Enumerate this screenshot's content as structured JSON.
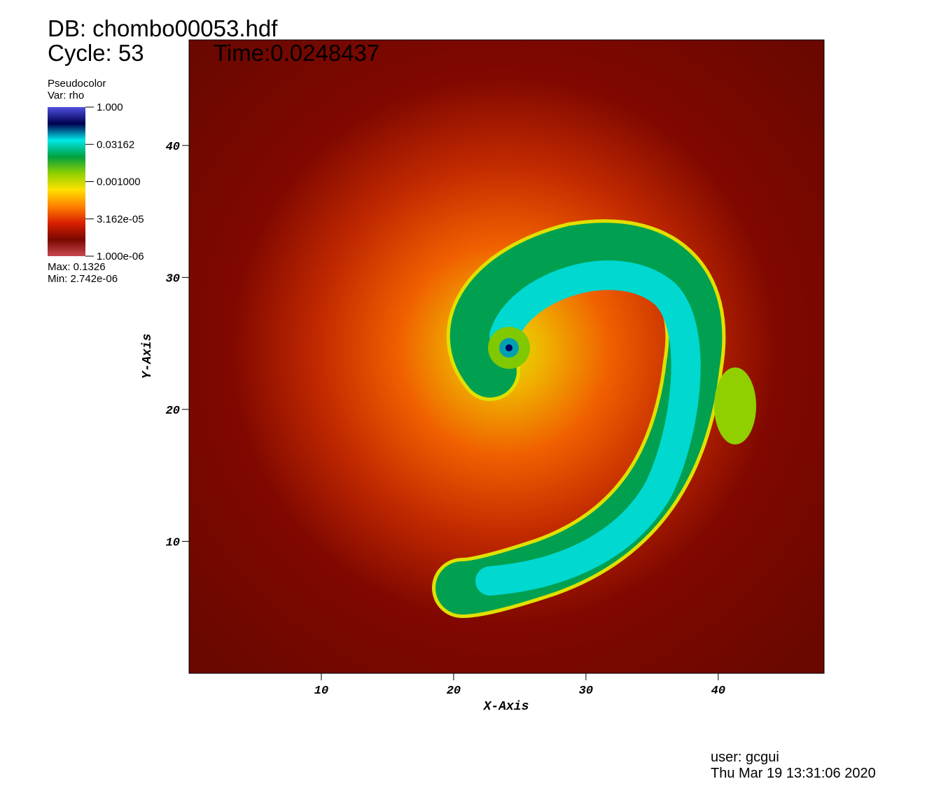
{
  "chart_data": {
    "type": "pseudocolor",
    "db": "DB: chombo00053.hdf",
    "cycle": "Cycle: 53",
    "time": "Time:0.0248437",
    "x_label": "X-Axis",
    "y_label": "Y-Axis",
    "xlim": [
      0,
      48
    ],
    "ylim": [
      0,
      48
    ],
    "xticks": [
      10,
      20,
      30,
      40
    ],
    "yticks": [
      10,
      20,
      30,
      40
    ],
    "legend": {
      "plot": "Pseudocolor",
      "var": "Var: rho",
      "log": true,
      "lim": [
        1e-06,
        1
      ],
      "ticks": [
        {
          "value": 1,
          "label": "1.000"
        },
        {
          "value": 0.03162,
          "label": "0.03162"
        },
        {
          "value": 0.001,
          "label": "0.001000"
        },
        {
          "value": 3.162e-05,
          "label": "3.162e-05"
        },
        {
          "value": 1e-06,
          "label": "1.000e-06"
        }
      ],
      "colors": [
        "#c84850",
        "#7a0800",
        "#d82000",
        "#ff8000",
        "#ffe000",
        "#90d000",
        "#00a040",
        "#00e8e8",
        "#000050",
        "#5050e0"
      ],
      "max": "Max:  0.1326",
      "min": "Min:  2.742e-06"
    },
    "user": "user: gcgui",
    "date": "Thu Mar 19 13:31:06 2020"
  }
}
